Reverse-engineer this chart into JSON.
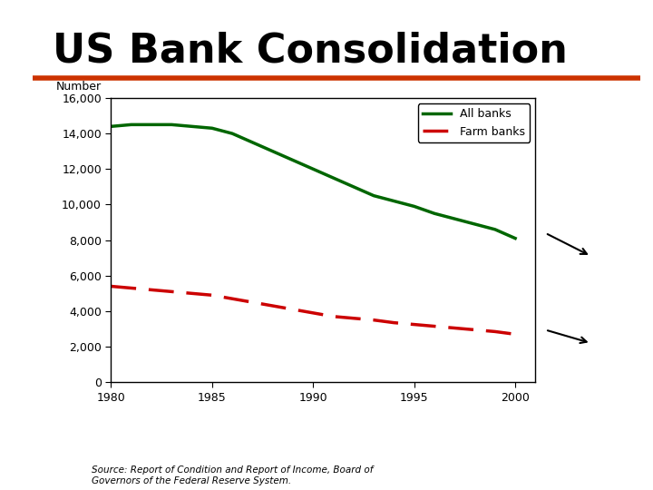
{
  "title": "US Bank Consolidation",
  "title_fontsize": 32,
  "title_fontweight": "bold",
  "title_color": "#000000",
  "underline_color": "#cc3300",
  "ylabel": "Number",
  "source_text": "Source: Report of Condition and Report of Income, Board of\nGovernors of the Federal Reserve System.",
  "xlim": [
    1980,
    2001
  ],
  "ylim": [
    0,
    16000
  ],
  "xticks": [
    1980,
    1985,
    1990,
    1995,
    2000
  ],
  "yticks": [
    0,
    2000,
    4000,
    6000,
    8000,
    10000,
    12000,
    14000,
    16000
  ],
  "ytick_labels": [
    "0",
    "2,000",
    "4,000",
    "6,000",
    "8,000",
    "10,000",
    "12,000",
    "14,000",
    "16,000"
  ],
  "all_banks_x": [
    1980,
    1981,
    1982,
    1983,
    1984,
    1985,
    1986,
    1987,
    1988,
    1989,
    1990,
    1991,
    1992,
    1993,
    1994,
    1995,
    1996,
    1997,
    1998,
    1999,
    2000
  ],
  "all_banks_y": [
    14400,
    14500,
    14500,
    14500,
    14400,
    14300,
    14000,
    13500,
    13000,
    12500,
    12000,
    11500,
    11000,
    10500,
    10200,
    9900,
    9500,
    9200,
    8900,
    8600,
    8100
  ],
  "farm_banks_x": [
    1980,
    1981,
    1982,
    1983,
    1984,
    1985,
    1986,
    1987,
    1988,
    1989,
    1990,
    1991,
    1992,
    1993,
    1994,
    1995,
    1996,
    1997,
    1998,
    1999,
    2000
  ],
  "farm_banks_y": [
    5400,
    5300,
    5200,
    5100,
    5000,
    4900,
    4700,
    4500,
    4300,
    4100,
    3900,
    3700,
    3600,
    3500,
    3350,
    3250,
    3150,
    3050,
    2950,
    2850,
    2700
  ],
  "all_banks_color": "#006600",
  "farm_banks_color": "#cc0000",
  "background_color": "#ffffff",
  "plot_bg_color": "#ffffff"
}
